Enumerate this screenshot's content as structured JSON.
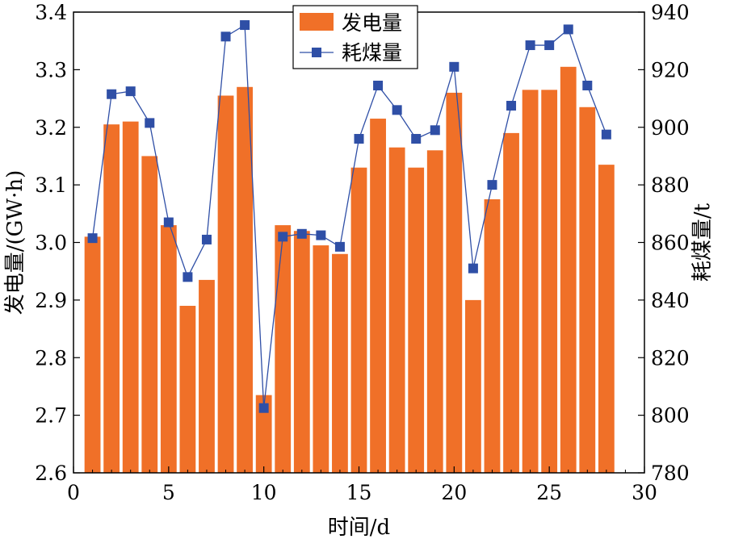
{
  "chart_data": {
    "type": "bar+line",
    "xlabel": "时间/d",
    "ylabel_left": "发电量/(GW·h)",
    "ylabel_right": "耗煤量/t",
    "xlim": [
      0,
      30
    ],
    "ylim_left": [
      2.6,
      3.4
    ],
    "ylim_right": [
      780,
      940
    ],
    "x_ticks": [
      0,
      5,
      10,
      15,
      20,
      25,
      30
    ],
    "y_ticks_left": [
      "2.6",
      "2.7",
      "2.8",
      "2.9",
      "3.0",
      "3.1",
      "3.2",
      "3.3",
      "3.4"
    ],
    "y_ticks_right": [
      "780",
      "800",
      "820",
      "840",
      "860",
      "880",
      "900",
      "920",
      "940"
    ],
    "x": [
      1,
      2,
      3,
      4,
      5,
      6,
      7,
      8,
      9,
      10,
      11,
      12,
      13,
      14,
      15,
      16,
      17,
      18,
      19,
      20,
      21,
      22,
      23,
      24,
      25,
      26,
      27,
      28
    ],
    "series": [
      {
        "name": "发电量",
        "kind": "bar",
        "axis": "left",
        "color": "#f07028",
        "values": [
          3.01,
          3.205,
          3.21,
          3.15,
          3.03,
          2.89,
          2.935,
          3.255,
          3.27,
          2.735,
          3.03,
          3.02,
          2.995,
          2.98,
          3.13,
          3.215,
          3.165,
          3.13,
          3.16,
          3.26,
          2.9,
          3.075,
          3.19,
          3.265,
          3.265,
          3.305,
          3.235,
          3.135
        ]
      },
      {
        "name": "耗煤量",
        "kind": "line",
        "axis": "right",
        "color": "#2f4fa6",
        "values": [
          861.5,
          911.5,
          912.5,
          901.5,
          867.0,
          848.0,
          861.0,
          931.5,
          935.5,
          802.5,
          862.0,
          863.0,
          862.5,
          858.5,
          896.0,
          914.5,
          906.0,
          896.0,
          899.0,
          921.0,
          851.0,
          880.0,
          907.5,
          928.5,
          928.5,
          934.0,
          914.5,
          897.5
        ]
      }
    ],
    "legend_position": "top-center",
    "grid": false
  }
}
